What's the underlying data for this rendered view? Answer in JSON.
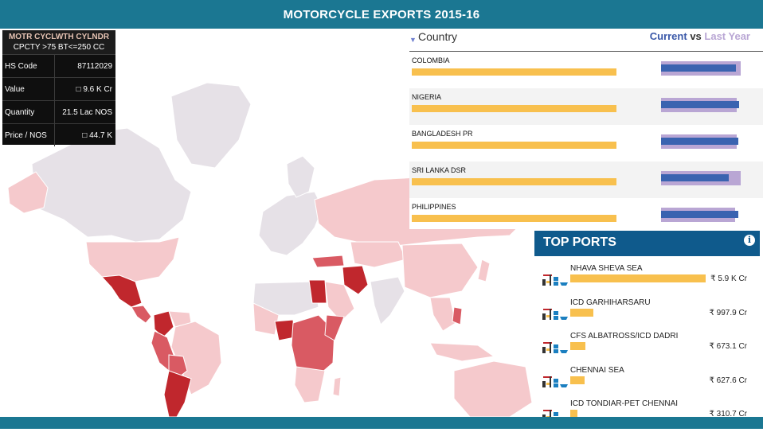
{
  "title": "MOTORCYCLE EXPORTS 2015-16",
  "product_card": {
    "line1": "MOTR CYCLWTH CYLNDR",
    "line2": "CPCTY >75 BT<=250 CC",
    "rows": [
      {
        "label": "HS Code",
        "value": "87112029"
      },
      {
        "label": "Value",
        "value": "□ 9.6 K Cr"
      },
      {
        "label": "Quantity",
        "value": "21.5 Lac NOS"
      },
      {
        "label": "Price / NOS",
        "value": "□ 44.7 K"
      }
    ]
  },
  "country_panel": {
    "header_label": "Country",
    "legend_current": "Current",
    "legend_vs": "vs",
    "legend_last": "Last Year",
    "rows": [
      {
        "name": "COLOMBIA",
        "share": 1.0,
        "current": 0.94,
        "last_year": 1.0
      },
      {
        "name": "NIGERIA",
        "share": 1.0,
        "current": 0.98,
        "last_year": 0.95
      },
      {
        "name": "BANGLADESH PR",
        "share": 1.0,
        "current": 0.97,
        "last_year": 0.95
      },
      {
        "name": "SRI LANKA DSR",
        "share": 1.0,
        "current": 0.85,
        "last_year": 1.0
      },
      {
        "name": "PHILIPPINES",
        "share": 1.0,
        "current": 0.97,
        "last_year": 0.93
      }
    ]
  },
  "top_ports": {
    "title": "TOP PORTS",
    "info_icon": "info-icon",
    "items": [
      {
        "name": "NHAVA SHEVA SEA",
        "value": "₹ 5.9 K Cr",
        "share": 1.0
      },
      {
        "name": "ICD GARHIHARSARU",
        "value": "₹ 997.9 Cr",
        "share": 0.17
      },
      {
        "name": "CFS ALBATROSS/ICD DADRI",
        "value": "₹ 673.1 Cr",
        "share": 0.114
      },
      {
        "name": "CHENNAI SEA",
        "value": "₹ 627.6 Cr",
        "share": 0.107
      },
      {
        "name": "ICD TONDIAR-PET CHENNAI",
        "value": "₹ 310.7 Cr",
        "share": 0.053
      }
    ]
  },
  "colors": {
    "header_bg": "#1b7792",
    "ports_header": "#0f5a8c",
    "bar_gold": "#f8c04e",
    "current_blue": "#3a63b0",
    "last_year_purple": "#b9a6d4",
    "map_dark": "#c0272d",
    "map_mid": "#d95a63",
    "map_light": "#f5c9cc",
    "map_none": "#e6e1e7"
  }
}
